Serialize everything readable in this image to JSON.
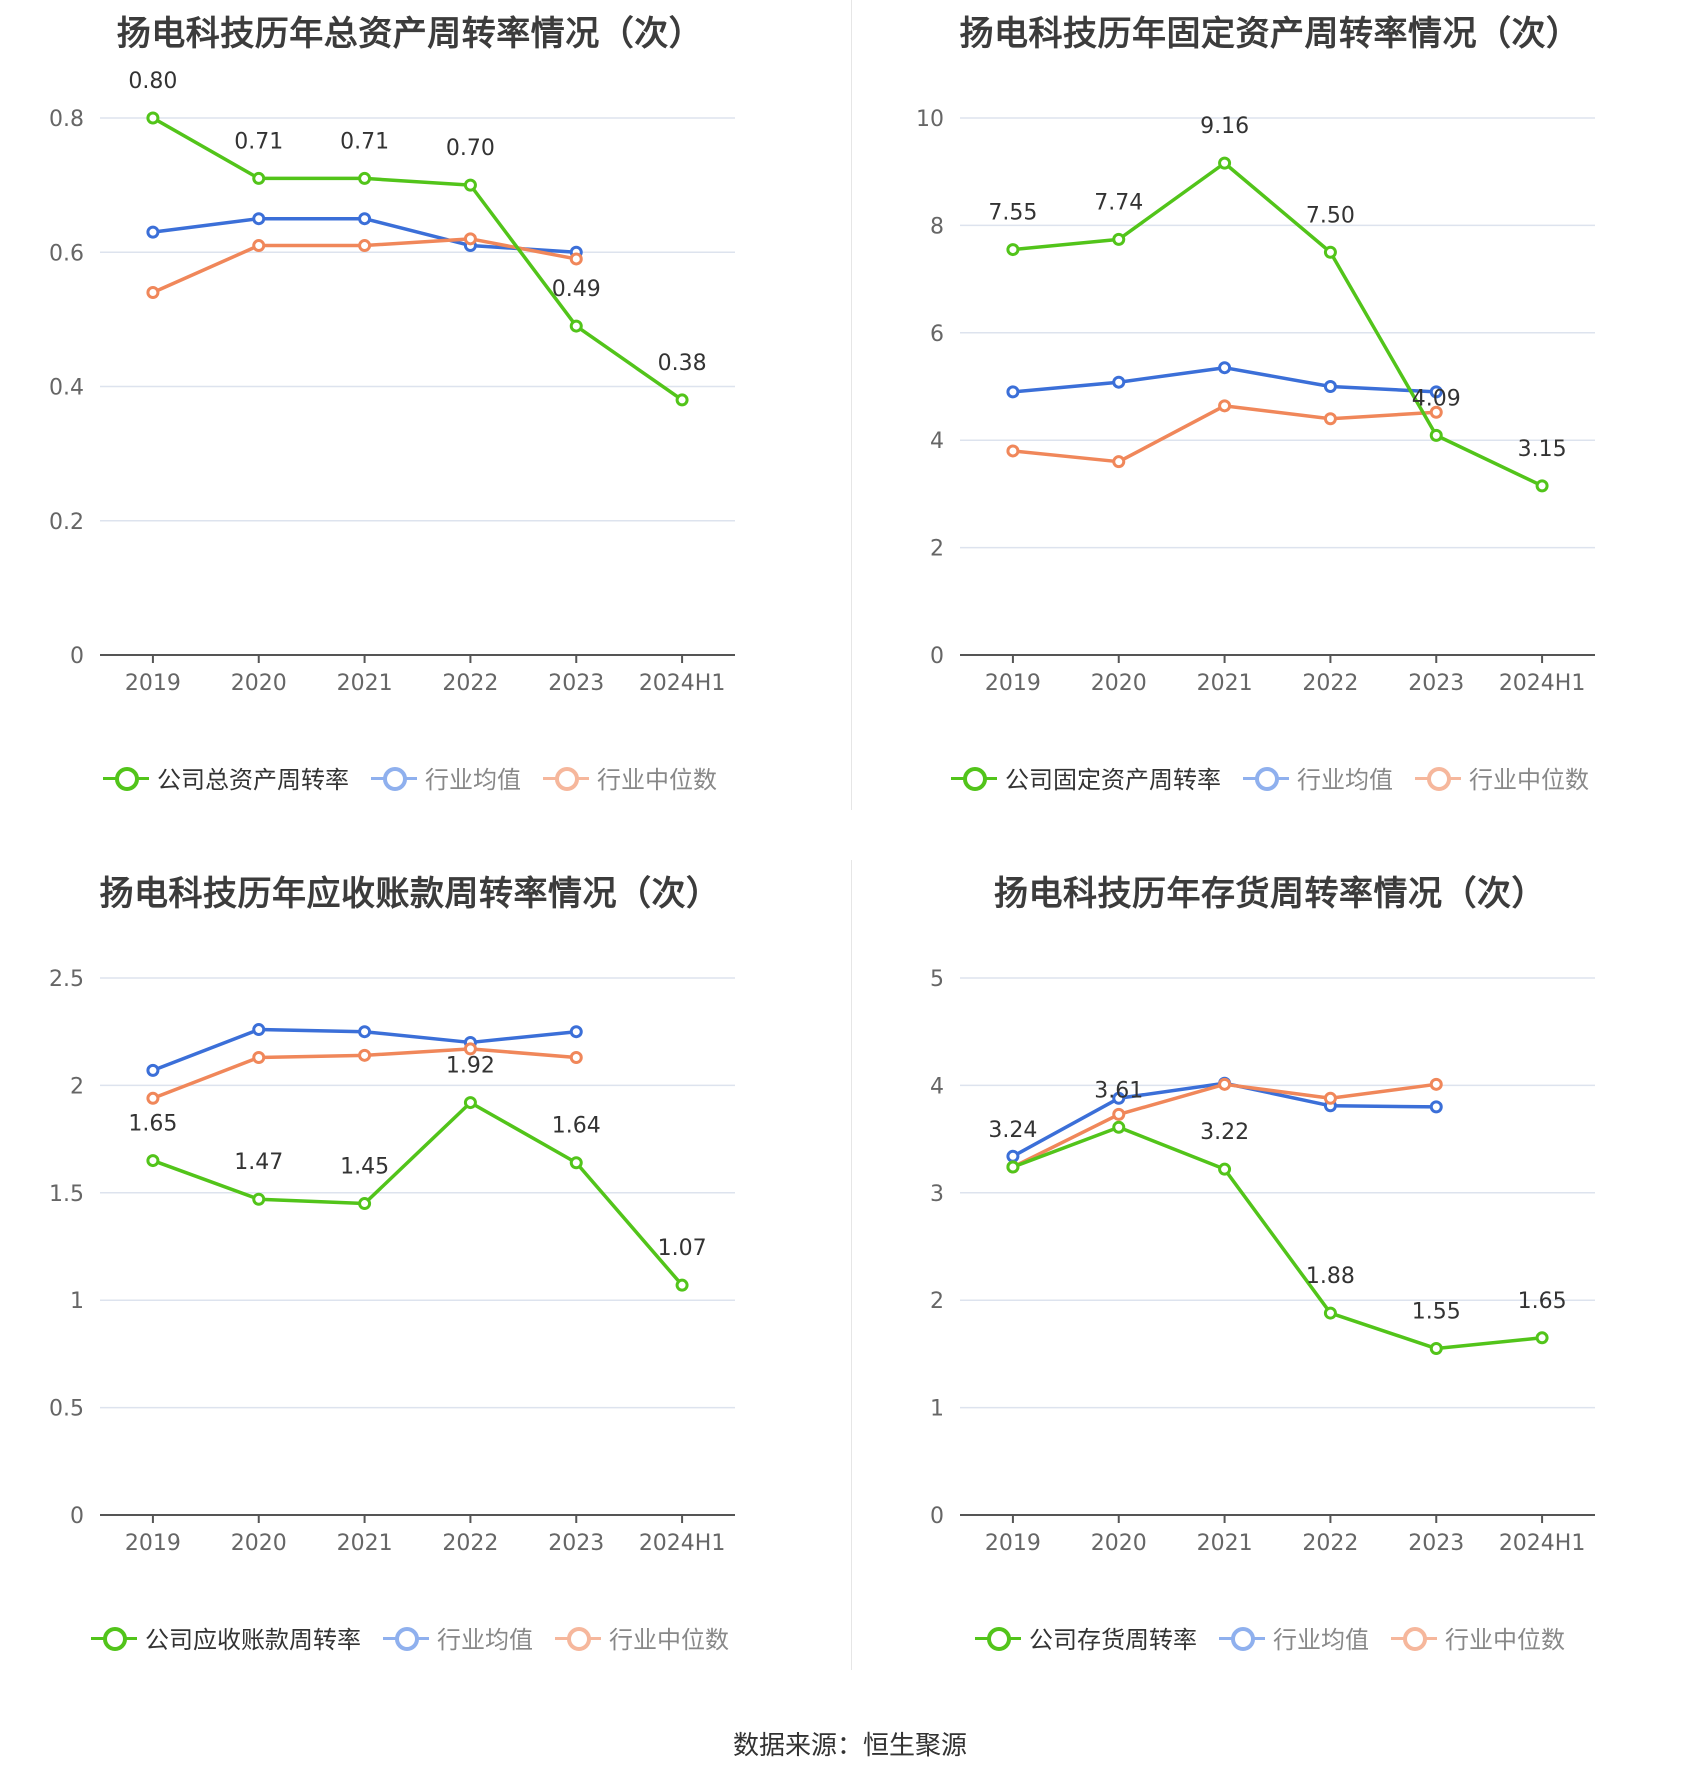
{
  "source": "数据来源：恒生聚源",
  "chart_data": [
    {
      "type": "line",
      "title": "扬电科技历年总资产周转率情况（次）",
      "categories": [
        "2019",
        "2020",
        "2021",
        "2022",
        "2023",
        "2024H1"
      ],
      "ylim": [
        0,
        0.8
      ],
      "yticks": [
        0,
        0.2,
        0.4,
        0.6,
        0.8
      ],
      "ytick_labels": [
        "0",
        "0.2",
        "0.4",
        "0.6",
        "0.8"
      ],
      "legend_position": "bottom",
      "series": [
        {
          "name": "公司总资产周转率",
          "color": "#52c41a",
          "values": [
            0.8,
            0.71,
            0.71,
            0.7,
            0.49,
            0.38
          ],
          "labels": [
            "0.80",
            "0.71",
            "0.71",
            "0.70",
            "0.49",
            "0.38"
          ]
        },
        {
          "name": "行业均值",
          "color": "#3b6fd8",
          "values": [
            0.63,
            0.65,
            0.65,
            0.61,
            0.6,
            null
          ]
        },
        {
          "name": "行业中位数",
          "color": "#f0875a",
          "values": [
            0.54,
            0.61,
            0.61,
            0.62,
            0.59,
            null
          ]
        }
      ]
    },
    {
      "type": "line",
      "title": "扬电科技历年固定资产周转率情况（次）",
      "categories": [
        "2019",
        "2020",
        "2021",
        "2022",
        "2023",
        "2024H1"
      ],
      "ylim": [
        0,
        10
      ],
      "yticks": [
        0,
        2,
        4,
        6,
        8,
        10
      ],
      "ytick_labels": [
        "0",
        "2",
        "4",
        "6",
        "8",
        "10"
      ],
      "legend_position": "bottom",
      "series": [
        {
          "name": "公司固定资产周转率",
          "color": "#52c41a",
          "values": [
            7.55,
            7.74,
            9.16,
            7.5,
            4.09,
            3.15
          ],
          "labels": [
            "7.55",
            "7.74",
            "9.16",
            "7.50",
            "4.09",
            "3.15"
          ]
        },
        {
          "name": "行业均值",
          "color": "#3b6fd8",
          "values": [
            4.9,
            5.08,
            5.35,
            5.0,
            4.9,
            null
          ]
        },
        {
          "name": "行业中位数",
          "color": "#f0875a",
          "values": [
            3.8,
            3.6,
            4.64,
            4.4,
            4.52,
            null
          ]
        }
      ]
    },
    {
      "type": "line",
      "title": "扬电科技历年应收账款周转率情况（次）",
      "categories": [
        "2019",
        "2020",
        "2021",
        "2022",
        "2023",
        "2024H1"
      ],
      "ylim": [
        0,
        2.5
      ],
      "yticks": [
        0,
        0.5,
        1,
        1.5,
        2,
        2.5
      ],
      "ytick_labels": [
        "0",
        "0.5",
        "1",
        "1.5",
        "2",
        "2.5"
      ],
      "legend_position": "bottom",
      "series": [
        {
          "name": "公司应收账款周转率",
          "color": "#52c41a",
          "values": [
            1.65,
            1.47,
            1.45,
            1.92,
            1.64,
            1.07
          ],
          "labels": [
            "1.65",
            "1.47",
            "1.45",
            "1.92",
            "1.64",
            "1.07"
          ]
        },
        {
          "name": "行业均值",
          "color": "#3b6fd8",
          "values": [
            2.07,
            2.26,
            2.25,
            2.2,
            2.25,
            null
          ]
        },
        {
          "name": "行业中位数",
          "color": "#f0875a",
          "values": [
            1.94,
            2.13,
            2.14,
            2.17,
            2.13,
            null
          ]
        }
      ]
    },
    {
      "type": "line",
      "title": "扬电科技历年存货周转率情况（次）",
      "categories": [
        "2019",
        "2020",
        "2021",
        "2022",
        "2023",
        "2024H1"
      ],
      "ylim": [
        0,
        5
      ],
      "yticks": [
        0,
        1,
        2,
        3,
        4,
        5
      ],
      "ytick_labels": [
        "0",
        "1",
        "2",
        "3",
        "4",
        "5"
      ],
      "legend_position": "bottom",
      "series": [
        {
          "name": "公司存货周转率",
          "color": "#52c41a",
          "values": [
            3.24,
            3.61,
            3.22,
            1.88,
            1.55,
            1.65
          ],
          "labels": [
            "3.24",
            "3.61",
            "3.22",
            "1.88",
            "1.55",
            "1.65"
          ]
        },
        {
          "name": "行业均值",
          "color": "#3b6fd8",
          "values": [
            3.34,
            3.88,
            4.02,
            3.81,
            3.8,
            null
          ]
        },
        {
          "name": "行业中位数",
          "color": "#f0875a",
          "values": [
            3.24,
            3.73,
            4.01,
            3.88,
            4.01,
            null
          ]
        }
      ]
    }
  ]
}
